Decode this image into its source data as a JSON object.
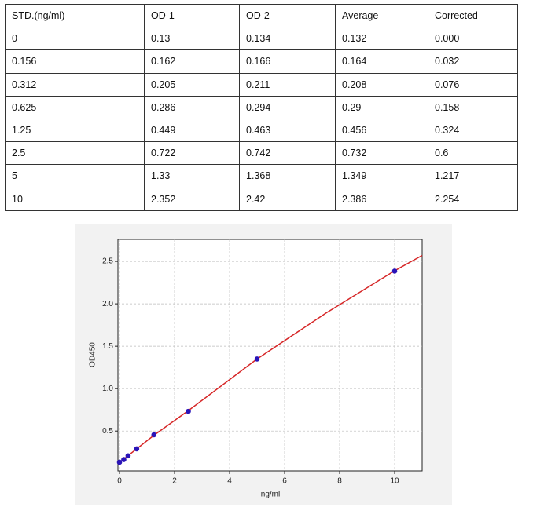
{
  "table": {
    "header": [
      "STD.(ng/ml)",
      "OD-1",
      "OD-2",
      "Average",
      "Corrected"
    ],
    "rows": [
      [
        "0",
        "0.13",
        "0.134",
        "0.132",
        "0.000"
      ],
      [
        "0.156",
        "0.162",
        "0.166",
        "0.164",
        "0.032"
      ],
      [
        "0.312",
        "0.205",
        "0.211",
        "0.208",
        "0.076"
      ],
      [
        "0.625",
        "0.286",
        "0.294",
        "0.29",
        "0.158"
      ],
      [
        "1.25",
        "0.449",
        "0.463",
        "0.456",
        "0.324"
      ],
      [
        "2.5",
        "0.722",
        "0.742",
        "0.732",
        "0.6"
      ],
      [
        "5",
        "1.33",
        "1.368",
        "1.349",
        "1.217"
      ],
      [
        "10",
        "2.352",
        "2.42",
        "2.386",
        "2.254"
      ]
    ]
  },
  "chart_data": {
    "type": "scatter",
    "xlabel": "ng/ml",
    "ylabel": "OD450",
    "xlim": [
      0,
      11
    ],
    "ylim": [
      0.03,
      2.76
    ],
    "xticks": [
      0,
      2,
      4,
      6,
      8,
      10
    ],
    "yticks": [
      0.5,
      {
        "value": 1,
        "label": "1.0"
      },
      1.5,
      {
        "value": 2,
        "label": "2.0"
      },
      2.5
    ],
    "grid": true,
    "series": [
      {
        "type": "line",
        "color": "#d62728",
        "x": [
          0,
          1.25,
          2.5,
          5,
          7.5,
          10,
          11
        ],
        "values": [
          0.13,
          0.45,
          0.74,
          1.35,
          1.89,
          2.39,
          2.57
        ]
      },
      {
        "type": "scatter",
        "color": "#2a14b8",
        "x": [
          0,
          0.156,
          0.312,
          0.625,
          1.25,
          2.5,
          5,
          10
        ],
        "values": [
          0.132,
          0.164,
          0.208,
          0.29,
          0.456,
          0.732,
          1.349,
          2.386
        ]
      }
    ]
  }
}
